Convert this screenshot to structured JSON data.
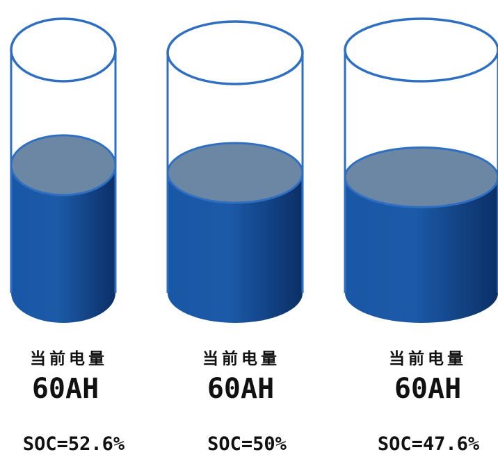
{
  "colors": {
    "outline": "#2f6fc1",
    "liquid_light": "#1f5aa8",
    "liquid_dark": "#0a2f66",
    "liquid_top": "#6c87a3",
    "text": "#111111"
  },
  "cylinders": [
    {
      "caption": "当前电量",
      "capacity": "60AH",
      "soc_label": "SOC=52.6%",
      "soc_percent": 52.6
    },
    {
      "caption": "当前电量",
      "capacity": "60AH",
      "soc_label": "SOC=50%",
      "soc_percent": 50
    },
    {
      "caption": "当前电量",
      "capacity": "60AH",
      "soc_label": "SOC=47.6%",
      "soc_percent": 47.6
    }
  ]
}
